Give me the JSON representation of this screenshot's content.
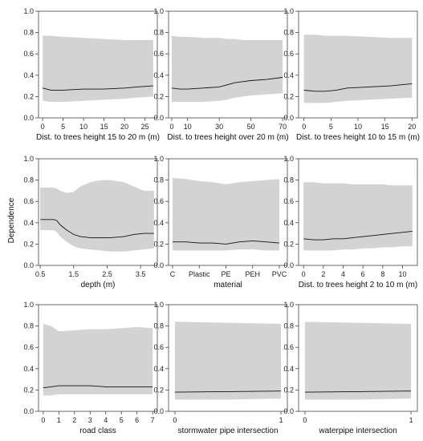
{
  "y_axis_label": "Dependence",
  "chart_data": [
    {
      "type": "area",
      "xlabel": "Dist. to trees height 15 to 20 m (m)",
      "xlim": [
        -1,
        28
      ],
      "x_ticks": [
        0,
        5,
        10,
        15,
        20,
        25
      ],
      "x_tick_labels": [
        "0",
        "5",
        "10",
        "15",
        "20",
        "25"
      ],
      "ylim": [
        0,
        1
      ],
      "y_ticks": [
        "0.0",
        "0.2",
        "0.4",
        "0.6",
        "0.8",
        "1.0"
      ],
      "x": [
        0,
        2,
        5,
        10,
        15,
        20,
        23,
        27
      ],
      "y": [
        0.28,
        0.26,
        0.26,
        0.27,
        0.27,
        0.28,
        0.29,
        0.3
      ],
      "upper": [
        0.77,
        0.77,
        0.76,
        0.75,
        0.74,
        0.73,
        0.73,
        0.73
      ],
      "lower": [
        0.16,
        0.15,
        0.15,
        0.16,
        0.17,
        0.18,
        0.19,
        0.2
      ]
    },
    {
      "type": "area",
      "xlabel": "Dist. to trees height over 20 m (m)",
      "xlim": [
        -2,
        73
      ],
      "x_ticks": [
        0,
        10,
        30,
        50,
        70
      ],
      "x_tick_labels": [
        "0",
        "10",
        "30",
        "50",
        "70"
      ],
      "ylim": [
        0,
        1
      ],
      "y_ticks": [
        "0.0",
        "0.2",
        "0.4",
        "0.6",
        "0.8",
        "1.0"
      ],
      "x": [
        0,
        5,
        10,
        20,
        30,
        35,
        40,
        45,
        50,
        60,
        70
      ],
      "y": [
        0.28,
        0.27,
        0.27,
        0.28,
        0.29,
        0.31,
        0.33,
        0.34,
        0.35,
        0.36,
        0.38
      ],
      "upper": [
        0.77,
        0.76,
        0.76,
        0.75,
        0.75,
        0.74,
        0.74,
        0.73,
        0.73,
        0.73,
        0.73
      ],
      "lower": [
        0.15,
        0.15,
        0.15,
        0.15,
        0.16,
        0.17,
        0.19,
        0.2,
        0.21,
        0.22,
        0.23
      ]
    },
    {
      "type": "area",
      "xlabel": "Dist. to trees height 10 to 15 m (m)",
      "xlim": [
        -1,
        21
      ],
      "x_ticks": [
        0,
        5,
        10,
        15,
        20
      ],
      "x_tick_labels": [
        "0",
        "5",
        "10",
        "15",
        "20"
      ],
      "ylim": [
        0,
        1
      ],
      "y_ticks": [
        "0.0",
        "0.2",
        "0.4",
        "0.6",
        "0.8",
        "1.0"
      ],
      "x": [
        0,
        2,
        4,
        6,
        8,
        12,
        16,
        20
      ],
      "y": [
        0.26,
        0.25,
        0.25,
        0.26,
        0.28,
        0.29,
        0.3,
        0.32
      ],
      "upper": [
        0.78,
        0.78,
        0.77,
        0.77,
        0.77,
        0.76,
        0.75,
        0.75
      ],
      "lower": [
        0.14,
        0.14,
        0.14,
        0.15,
        0.16,
        0.17,
        0.18,
        0.19
      ]
    },
    {
      "type": "area",
      "xlabel": "depth (m)",
      "xlim": [
        0.45,
        4.0
      ],
      "x_ticks": [
        0.5,
        1.5,
        2.5,
        3.5
      ],
      "x_tick_labels": [
        "0.5",
        "1.5",
        "2.5",
        "3.5"
      ],
      "ylim": [
        0,
        1
      ],
      "y_ticks": [
        "0.0",
        "0.2",
        "0.4",
        "0.6",
        "0.8",
        "1.0"
      ],
      "x": [
        0.5,
        0.9,
        1.0,
        1.1,
        1.3,
        1.5,
        1.7,
        2.0,
        2.3,
        2.6,
        3.0,
        3.3,
        3.6,
        3.9
      ],
      "y": [
        0.43,
        0.43,
        0.42,
        0.38,
        0.33,
        0.29,
        0.27,
        0.26,
        0.26,
        0.26,
        0.27,
        0.29,
        0.3,
        0.3
      ],
      "upper": [
        0.73,
        0.73,
        0.72,
        0.7,
        0.68,
        0.69,
        0.74,
        0.78,
        0.8,
        0.8,
        0.78,
        0.74,
        0.7,
        0.7
      ],
      "lower": [
        0.33,
        0.33,
        0.31,
        0.27,
        0.22,
        0.18,
        0.16,
        0.15,
        0.14,
        0.13,
        0.13,
        0.14,
        0.15,
        0.16
      ]
    },
    {
      "type": "area",
      "xlabel": "material",
      "xlim": [
        0.85,
        5.3
      ],
      "x_ticks": [
        1,
        2,
        3,
        4,
        5
      ],
      "x_tick_labels": [
        "C",
        "Plastic",
        "PE",
        "PEH",
        "PVC"
      ],
      "ylim": [
        0,
        1
      ],
      "y_ticks": [
        "0.0",
        "0.2",
        "0.4",
        "0.6",
        "0.8",
        "1.0"
      ],
      "x": [
        1,
        1.5,
        2,
        2.5,
        3,
        3.5,
        4,
        4.5,
        5
      ],
      "y": [
        0.22,
        0.22,
        0.21,
        0.21,
        0.2,
        0.22,
        0.23,
        0.22,
        0.21
      ],
      "upper": [
        0.82,
        0.81,
        0.79,
        0.78,
        0.76,
        0.78,
        0.79,
        0.8,
        0.81
      ],
      "lower": [
        0.14,
        0.14,
        0.14,
        0.14,
        0.14,
        0.15,
        0.15,
        0.14,
        0.14
      ]
    },
    {
      "type": "area",
      "xlabel": "Dist. to trees height 2 to 10 m (m)",
      "xlim": [
        -0.5,
        11.5
      ],
      "x_ticks": [
        0,
        2,
        4,
        6,
        8,
        10
      ],
      "x_tick_labels": [
        "0",
        "2",
        "4",
        "6",
        "8",
        "10"
      ],
      "ylim": [
        0,
        1
      ],
      "y_ticks": [
        "0.0",
        "0.2",
        "0.4",
        "0.6",
        "0.8",
        "1.0"
      ],
      "x": [
        0,
        1,
        2,
        3,
        4,
        5,
        6,
        7,
        8,
        9,
        10,
        11
      ],
      "y": [
        0.25,
        0.24,
        0.24,
        0.25,
        0.25,
        0.26,
        0.27,
        0.28,
        0.29,
        0.3,
        0.31,
        0.32
      ],
      "upper": [
        0.78,
        0.78,
        0.77,
        0.77,
        0.77,
        0.76,
        0.76,
        0.76,
        0.76,
        0.75,
        0.75,
        0.75
      ],
      "lower": [
        0.14,
        0.14,
        0.14,
        0.14,
        0.15,
        0.15,
        0.16,
        0.16,
        0.17,
        0.17,
        0.18,
        0.18
      ]
    },
    {
      "type": "area",
      "xlabel": "road class",
      "xlim": [
        -0.3,
        7.3
      ],
      "x_ticks": [
        0,
        1,
        2,
        3,
        4,
        5,
        6,
        7
      ],
      "x_tick_labels": [
        "0",
        "1",
        "2",
        "3",
        "4",
        "5",
        "6",
        "7"
      ],
      "ylim": [
        0,
        1
      ],
      "y_ticks": [
        "0.0",
        "0.2",
        "0.4",
        "0.6",
        "0.8",
        "1.0"
      ],
      "x": [
        0,
        0.5,
        1,
        2,
        3,
        4,
        5,
        6,
        7
      ],
      "y": [
        0.22,
        0.23,
        0.24,
        0.24,
        0.24,
        0.23,
        0.23,
        0.23,
        0.23
      ],
      "upper": [
        0.82,
        0.8,
        0.75,
        0.76,
        0.77,
        0.77,
        0.78,
        0.79,
        0.78
      ],
      "lower": [
        0.15,
        0.15,
        0.16,
        0.16,
        0.16,
        0.16,
        0.16,
        0.16,
        0.16
      ]
    },
    {
      "type": "area",
      "xlabel": "stormwater pipe intersection",
      "xlim": [
        -0.06,
        1.06
      ],
      "x_ticks": [
        0,
        1
      ],
      "x_tick_labels": [
        "0",
        "1"
      ],
      "ylim": [
        0,
        1
      ],
      "y_ticks": [
        "0.0",
        "0.2",
        "0.4",
        "0.6",
        "0.8",
        "1.0"
      ],
      "x": [
        0,
        0.5,
        1
      ],
      "y": [
        0.18,
        0.185,
        0.19
      ],
      "upper": [
        0.84,
        0.83,
        0.82
      ],
      "lower": [
        0.11,
        0.11,
        0.12
      ]
    },
    {
      "type": "area",
      "xlabel": "waterpipe intersection",
      "xlim": [
        -0.06,
        1.06
      ],
      "x_ticks": [
        0,
        1
      ],
      "x_tick_labels": [
        "0",
        "1"
      ],
      "ylim": [
        0,
        1
      ],
      "y_ticks": [
        "0.0",
        "0.2",
        "0.4",
        "0.6",
        "0.8",
        "1.0"
      ],
      "x": [
        0,
        0.5,
        1
      ],
      "y": [
        0.18,
        0.185,
        0.19
      ],
      "upper": [
        0.84,
        0.83,
        0.82
      ],
      "lower": [
        0.11,
        0.11,
        0.12
      ]
    }
  ],
  "colors": {
    "band": "#d3d3d3",
    "line": "#111111",
    "axis": "#444444"
  }
}
